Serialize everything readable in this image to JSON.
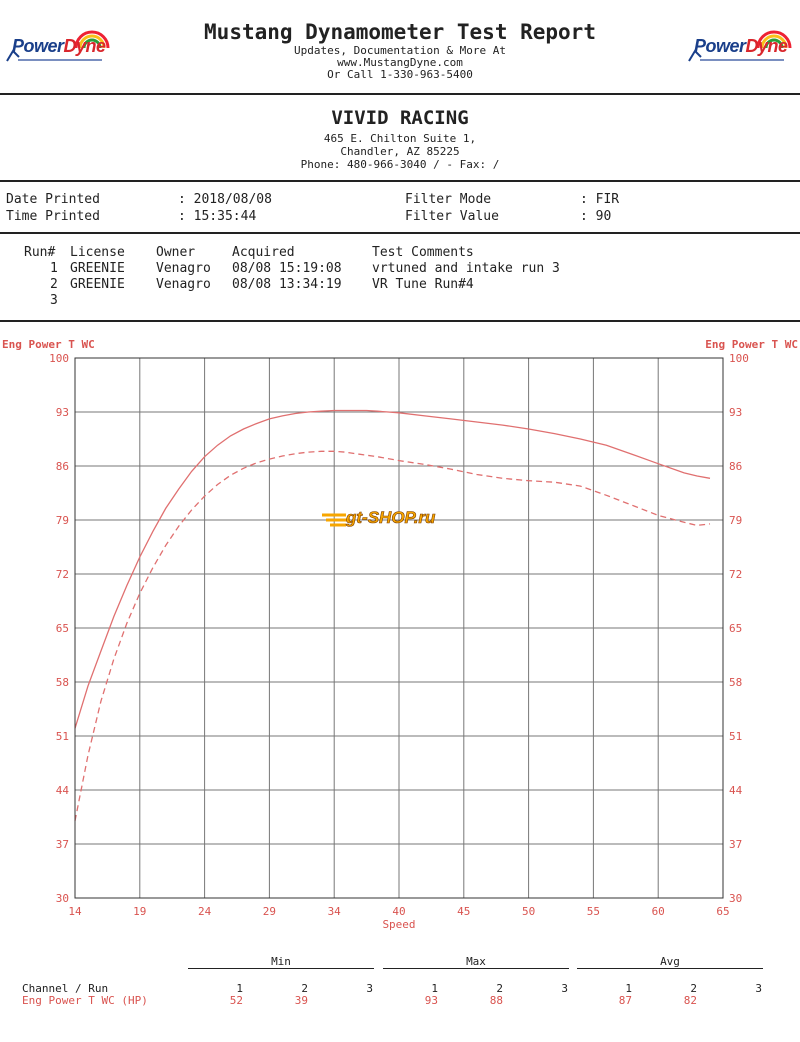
{
  "header": {
    "title": "Mustang Dynamometer Test Report",
    "line1": "Updates, Documentation & More At",
    "line2": "www.MustangDyne.com",
    "line3": "Or Call 1-330-963-5400",
    "logo_text_left": "Power",
    "logo_text_right": "Dyne"
  },
  "shop": {
    "name": "VIVID RACING",
    "address1": "465 E. Chilton Suite 1,",
    "address2": "Chandler, AZ  85225",
    "phone": "Phone: 480-966-3040 /  - Fax:  /"
  },
  "info": {
    "date_label": "Date Printed",
    "date_value": ": 2018/08/08",
    "time_label": "Time Printed",
    "time_value": ": 15:35:44",
    "filter_mode_label": "Filter Mode",
    "filter_mode_value": ": FIR",
    "filter_value_label": "Filter Value",
    "filter_value_value": ": 90"
  },
  "runs": {
    "headers": [
      "Run#",
      "License",
      "Owner",
      "Acquired",
      "Test Comments"
    ],
    "rows": [
      {
        "run": "1",
        "license": "GREENIE",
        "owner": "Venagro",
        "acquired": "08/08 15:19:08",
        "comment": "vrtuned and intake run 3"
      },
      {
        "run": "2",
        "license": "GREENIE",
        "owner": "Venagro",
        "acquired": "08/08 13:34:19",
        "comment": "VR Tune Run#4"
      },
      {
        "run": "3",
        "license": "",
        "owner": "",
        "acquired": "",
        "comment": ""
      }
    ]
  },
  "watermark": "gt-SHOP.ru",
  "chart_data": {
    "type": "line",
    "ylabel_left": "Eng Power T WC",
    "ylabel_right": "Eng Power T WC",
    "xlabel": "Speed",
    "xlim": [
      14,
      65
    ],
    "ylim": [
      30,
      100
    ],
    "x_ticks": [
      14,
      19,
      24,
      29,
      34,
      40,
      45,
      50,
      55,
      60,
      65
    ],
    "y_ticks": [
      100,
      93,
      86,
      79,
      72,
      65,
      58,
      51,
      44,
      37,
      30
    ],
    "grid": true,
    "series": [
      {
        "name": "1",
        "style": "solid",
        "color": "#e07070",
        "x": [
          14,
          15,
          16,
          17,
          18,
          19,
          20,
          21,
          22,
          23,
          24,
          25,
          26,
          27,
          28,
          29,
          30,
          31,
          32,
          33,
          34,
          35,
          36,
          37,
          38,
          39,
          40,
          42,
          44,
          46,
          48,
          50,
          52,
          54,
          56,
          58,
          60,
          62,
          63,
          64
        ],
        "y": [
          52,
          57.5,
          62,
          66.5,
          70.5,
          74.2,
          77.5,
          80.5,
          83,
          85.3,
          87.2,
          88.7,
          89.9,
          90.8,
          91.5,
          92.1,
          92.5,
          92.8,
          93,
          93.1,
          93.2,
          93.2,
          93.2,
          93.2,
          93.1,
          93,
          92.9,
          92.5,
          92.1,
          91.7,
          91.3,
          90.8,
          90.2,
          89.5,
          88.7,
          87.5,
          86.3,
          85.1,
          84.7,
          84.4
        ]
      },
      {
        "name": "2",
        "style": "dashed",
        "color": "#e07070",
        "x": [
          14,
          15,
          16,
          17,
          18,
          19,
          20,
          21,
          22,
          23,
          24,
          25,
          26,
          27,
          28,
          29,
          30,
          31,
          32,
          33,
          34,
          35,
          36,
          38,
          40,
          42,
          44,
          46,
          48,
          50,
          52,
          54,
          56,
          58,
          60,
          62,
          63,
          64
        ],
        "y": [
          40,
          48.5,
          55.5,
          61,
          65.6,
          69.5,
          72.8,
          75.7,
          78.2,
          80.3,
          82.1,
          83.6,
          84.8,
          85.7,
          86.4,
          86.9,
          87.3,
          87.6,
          87.8,
          87.9,
          87.9,
          87.8,
          87.6,
          87.2,
          86.7,
          86.2,
          85.6,
          84.9,
          84.4,
          84.1,
          83.9,
          83.4,
          82.2,
          80.9,
          79.6,
          78.7,
          78.3,
          78.5
        ]
      }
    ]
  },
  "summary": {
    "groups": [
      "Min",
      "Max",
      "Avg"
    ],
    "channel_label": "Channel / Run",
    "row_label": "Eng Power T WC (HP)",
    "runs": [
      "1",
      "2",
      "3"
    ],
    "min": [
      "52",
      "39",
      ""
    ],
    "max": [
      "93",
      "88",
      ""
    ],
    "avg": [
      "87",
      "82",
      ""
    ]
  }
}
